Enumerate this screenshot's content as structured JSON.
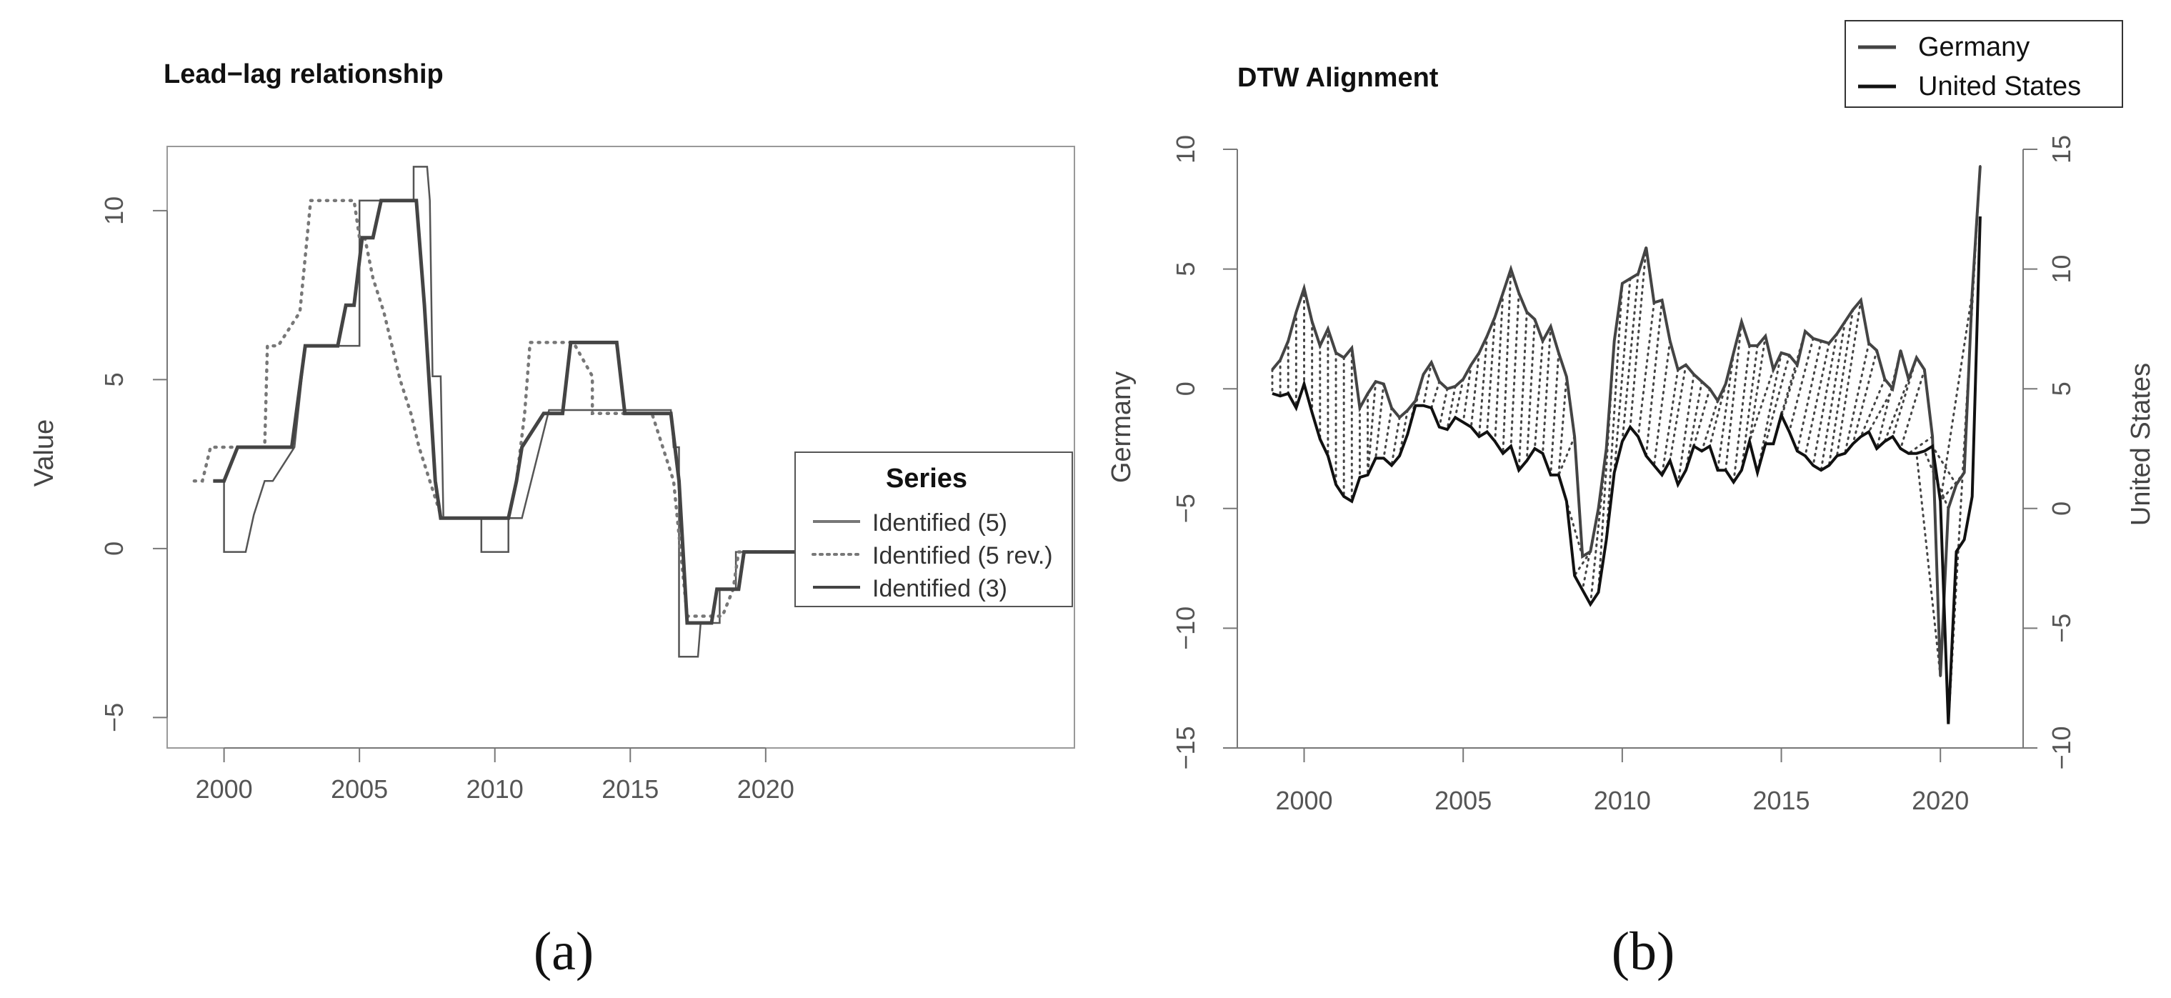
{
  "chart_data": [
    {
      "type": "line",
      "title": "Lead−lag relationship",
      "xlabel": "",
      "ylabel": "Value",
      "xlim": [
        1997.9,
        2031.4
      ],
      "ylim": [
        -5.9,
        11.9
      ],
      "x_ticks": [
        "2000",
        "2005",
        "2010",
        "2015",
        "2020"
      ],
      "y_ticks": [
        "−5",
        "0",
        "5",
        "10"
      ],
      "legend": {
        "title": "Series",
        "position": "right",
        "entries": [
          "Identified (5)",
          "Identified (5 rev.)",
          "Identified (3)"
        ]
      },
      "series": [
        {
          "name": "Identified (5)",
          "style": "thin-solid",
          "x": [
            1999.6,
            2000.0,
            2000.0,
            2000.8,
            2001.1,
            2001.5,
            2001.8,
            2002.6,
            2003.0,
            2005.0,
            2005.0,
            2007.0,
            2007.0,
            2007.5,
            2007.6,
            2007.7,
            2008.0,
            2008.1,
            2009.5,
            2009.5,
            2010.5,
            2010.5,
            2011.0,
            2012.0,
            2012.0,
            2014.5,
            2014.8,
            2016.5,
            2016.6,
            2016.8,
            2016.8,
            2017.5,
            2017.6,
            2018.3,
            2018.3,
            2018.9,
            2018.9,
            2021.2
          ],
          "y": [
            2,
            2,
            -0.1,
            -0.1,
            1,
            2,
            2,
            3,
            6,
            6,
            10.3,
            10.3,
            11.3,
            11.3,
            10.3,
            5.1,
            5.1,
            0.9,
            0.9,
            -0.1,
            -0.1,
            0.9,
            0.9,
            4.1,
            4.1,
            4.1,
            4.1,
            4.1,
            3,
            3,
            -3.2,
            -3.2,
            -2.2,
            -2.2,
            -1.2,
            -1.2,
            -0.1,
            -0.1
          ]
        },
        {
          "name": "Identified (5 rev.)",
          "style": "dotted",
          "x": [
            1998.9,
            1999.2,
            1999.5,
            2000.5,
            2001.5,
            2001.6,
            2002.0,
            2002.8,
            2003.2,
            2004.2,
            2004.4,
            2004.8,
            2005.0,
            2005.2,
            2005.5,
            2005.9,
            2006.2,
            2006.5,
            2006.9,
            2007.2,
            2007.6,
            2008.0,
            2008.1,
            2010.5,
            2010.8,
            2011.1,
            2011.3,
            2012.9,
            2013.6,
            2013.6,
            2014.8,
            2015.0,
            2015.8,
            2016.6,
            2017.1,
            2017.6,
            2018.4,
            2018.8,
            2019.0,
            2021.2
          ],
          "y": [
            2,
            2,
            3,
            3,
            3,
            6,
            6,
            7,
            10.3,
            10.3,
            10.3,
            10.3,
            9.2,
            9.2,
            8,
            7,
            6,
            5,
            4,
            3,
            2,
            1,
            0.9,
            0.9,
            2,
            4,
            6.1,
            6.1,
            5.1,
            4,
            4,
            4,
            4,
            2,
            -2,
            -2,
            -2,
            -1.2,
            -0.1,
            -0.1
          ]
        },
        {
          "name": "Identified (3)",
          "style": "thick-solid",
          "x": [
            1999.6,
            2000.0,
            2000.5,
            2002.5,
            2003.0,
            2004.2,
            2004.5,
            2004.8,
            2005.1,
            2005.5,
            2005.8,
            2006.5,
            2007.1,
            2007.4,
            2007.8,
            2008.0,
            2008.2,
            2010.5,
            2010.8,
            2011.0,
            2011.8,
            2012.5,
            2012.8,
            2014.5,
            2014.8,
            2016.4,
            2016.5,
            2016.8,
            2017.1,
            2018.0,
            2018.2,
            2019.0,
            2019.2,
            2021.2
          ],
          "y": [
            2,
            2,
            3,
            3,
            6,
            6,
            7.2,
            7.2,
            9.2,
            9.2,
            10.3,
            10.3,
            10.3,
            7.2,
            2,
            0.9,
            0.9,
            0.9,
            2,
            3,
            4,
            4,
            6.1,
            6.1,
            4,
            4,
            4,
            2,
            -2.2,
            -2.2,
            -1.2,
            -1.2,
            -0.1,
            -0.1
          ]
        }
      ]
    },
    {
      "type": "line",
      "title": "DTW Alignment",
      "xlabel": "",
      "ylabel": "Germany",
      "ylabel_right": "United States",
      "xlim": [
        1997.9,
        2022.6
      ],
      "ylim": [
        -15,
        10
      ],
      "ylim_right": [
        -10,
        15
      ],
      "x_ticks": [
        "2000",
        "2005",
        "2010",
        "2015",
        "2020"
      ],
      "y_ticks": [
        "−15",
        "−10",
        "−5",
        "0",
        "5",
        "10"
      ],
      "y_ticks_right": [
        "−10",
        "−5",
        "0",
        "5",
        "10",
        "15"
      ],
      "legend": {
        "position": "top-right",
        "entries": [
          "Germany",
          "United States"
        ]
      },
      "series": [
        {
          "name": "Germany",
          "axis": "left",
          "x": [
            1999.0,
            1999.25,
            1999.5,
            1999.75,
            2000.0,
            2000.25,
            2000.5,
            2000.75,
            2001.0,
            2001.25,
            2001.5,
            2001.75,
            2002.0,
            2002.25,
            2002.5,
            2002.75,
            2003.0,
            2003.25,
            2003.5,
            2003.75,
            2004.0,
            2004.25,
            2004.5,
            2004.75,
            2005.0,
            2005.25,
            2005.5,
            2005.75,
            2006.0,
            2006.25,
            2006.5,
            2006.75,
            2007.0,
            2007.25,
            2007.5,
            2007.75,
            2008.0,
            2008.25,
            2008.5,
            2008.75,
            2009.0,
            2009.25,
            2009.5,
            2009.75,
            2010.0,
            2010.25,
            2010.5,
            2010.75,
            2011.0,
            2011.25,
            2011.5,
            2011.75,
            2012.0,
            2012.25,
            2012.5,
            2012.75,
            2013.0,
            2013.25,
            2013.5,
            2013.75,
            2014.0,
            2014.25,
            2014.5,
            2014.75,
            2015.0,
            2015.25,
            2015.5,
            2015.75,
            2016.0,
            2016.25,
            2016.5,
            2016.75,
            2017.0,
            2017.25,
            2017.5,
            2017.75,
            2018.0,
            2018.25,
            2018.5,
            2018.75,
            2019.0,
            2019.25,
            2019.5,
            2019.75,
            2020.0,
            2020.25,
            2020.5,
            2020.75,
            2021.0,
            2021.25
          ],
          "y": [
            0.8,
            1.2,
            2.0,
            3.2,
            4.2,
            2.8,
            1.8,
            2.5,
            1.5,
            1.3,
            1.7,
            -0.8,
            -0.2,
            0.3,
            0.2,
            -0.8,
            -1.2,
            -0.9,
            -0.5,
            0.6,
            1.1,
            0.3,
            0.0,
            0.1,
            0.4,
            1.0,
            1.5,
            2.2,
            3.0,
            4.0,
            5.0,
            4.0,
            3.2,
            2.9,
            2.0,
            2.6,
            1.5,
            0.5,
            -2.0,
            -7.0,
            -6.8,
            -5.0,
            -2.5,
            2.0,
            4.4,
            4.6,
            4.8,
            5.9,
            3.6,
            3.7,
            2.0,
            0.8,
            1.0,
            0.6,
            0.3,
            0.0,
            -0.5,
            0.2,
            1.5,
            2.8,
            1.8,
            1.8,
            2.2,
            0.8,
            1.5,
            1.4,
            1.0,
            2.4,
            2.1,
            2.0,
            1.9,
            2.3,
            2.8,
            3.3,
            3.7,
            1.9,
            1.6,
            0.4,
            0.0,
            1.6,
            0.4,
            1.3,
            0.8,
            -2.0,
            -12.0,
            -5.0,
            -4.0,
            -3.5,
            4.0,
            9.3
          ]
        },
        {
          "name": "United States",
          "axis": "right",
          "x": [
            1999.0,
            1999.25,
            1999.5,
            1999.75,
            2000.0,
            2000.25,
            2000.5,
            2000.75,
            2001.0,
            2001.25,
            2001.5,
            2001.75,
            2002.0,
            2002.25,
            2002.5,
            2002.75,
            2003.0,
            2003.25,
            2003.5,
            2003.75,
            2004.0,
            2004.25,
            2004.5,
            2004.75,
            2005.0,
            2005.25,
            2005.5,
            2005.75,
            2006.0,
            2006.25,
            2006.5,
            2006.75,
            2007.0,
            2007.25,
            2007.5,
            2007.75,
            2008.0,
            2008.25,
            2008.5,
            2008.75,
            2009.0,
            2009.25,
            2009.5,
            2009.75,
            2010.0,
            2010.25,
            2010.5,
            2010.75,
            2011.0,
            2011.25,
            2011.5,
            2011.75,
            2012.0,
            2012.25,
            2012.5,
            2012.75,
            2013.0,
            2013.25,
            2013.5,
            2013.75,
            2014.0,
            2014.25,
            2014.5,
            2014.75,
            2015.0,
            2015.25,
            2015.5,
            2015.75,
            2016.0,
            2016.25,
            2016.5,
            2016.75,
            2017.0,
            2017.25,
            2017.5,
            2017.75,
            2018.0,
            2018.25,
            2018.5,
            2018.75,
            2019.0,
            2019.25,
            2019.5,
            2019.75,
            2020.0,
            2020.25,
            2020.5,
            2020.75,
            2021.0,
            2021.25
          ],
          "y": [
            4.8,
            4.7,
            4.8,
            4.2,
            5.2,
            4.0,
            2.9,
            2.2,
            1.0,
            0.5,
            0.3,
            1.3,
            1.4,
            2.1,
            2.1,
            1.8,
            2.2,
            3.1,
            4.3,
            4.3,
            4.2,
            3.4,
            3.3,
            3.8,
            3.6,
            3.4,
            3.0,
            3.2,
            2.8,
            2.3,
            2.6,
            1.6,
            2.0,
            2.5,
            2.3,
            1.4,
            1.4,
            0.3,
            -2.8,
            -3.4,
            -4.0,
            -3.5,
            -1.3,
            1.5,
            2.8,
            3.4,
            3.0,
            2.2,
            1.8,
            1.4,
            2.0,
            1.0,
            1.6,
            2.6,
            2.4,
            2.6,
            1.6,
            1.6,
            1.1,
            1.6,
            2.8,
            1.5,
            2.7,
            2.7,
            3.9,
            3.2,
            2.4,
            2.2,
            1.8,
            1.6,
            1.8,
            2.2,
            2.3,
            2.7,
            3.0,
            3.2,
            2.5,
            2.8,
            3.0,
            2.5,
            2.3,
            2.3,
            2.4,
            2.6,
            0.3,
            -9.0,
            -1.8,
            -1.3,
            0.5,
            12.2
          ]
        }
      ]
    }
  ],
  "captions": {
    "a": "(a)",
    "b": "(b)"
  }
}
